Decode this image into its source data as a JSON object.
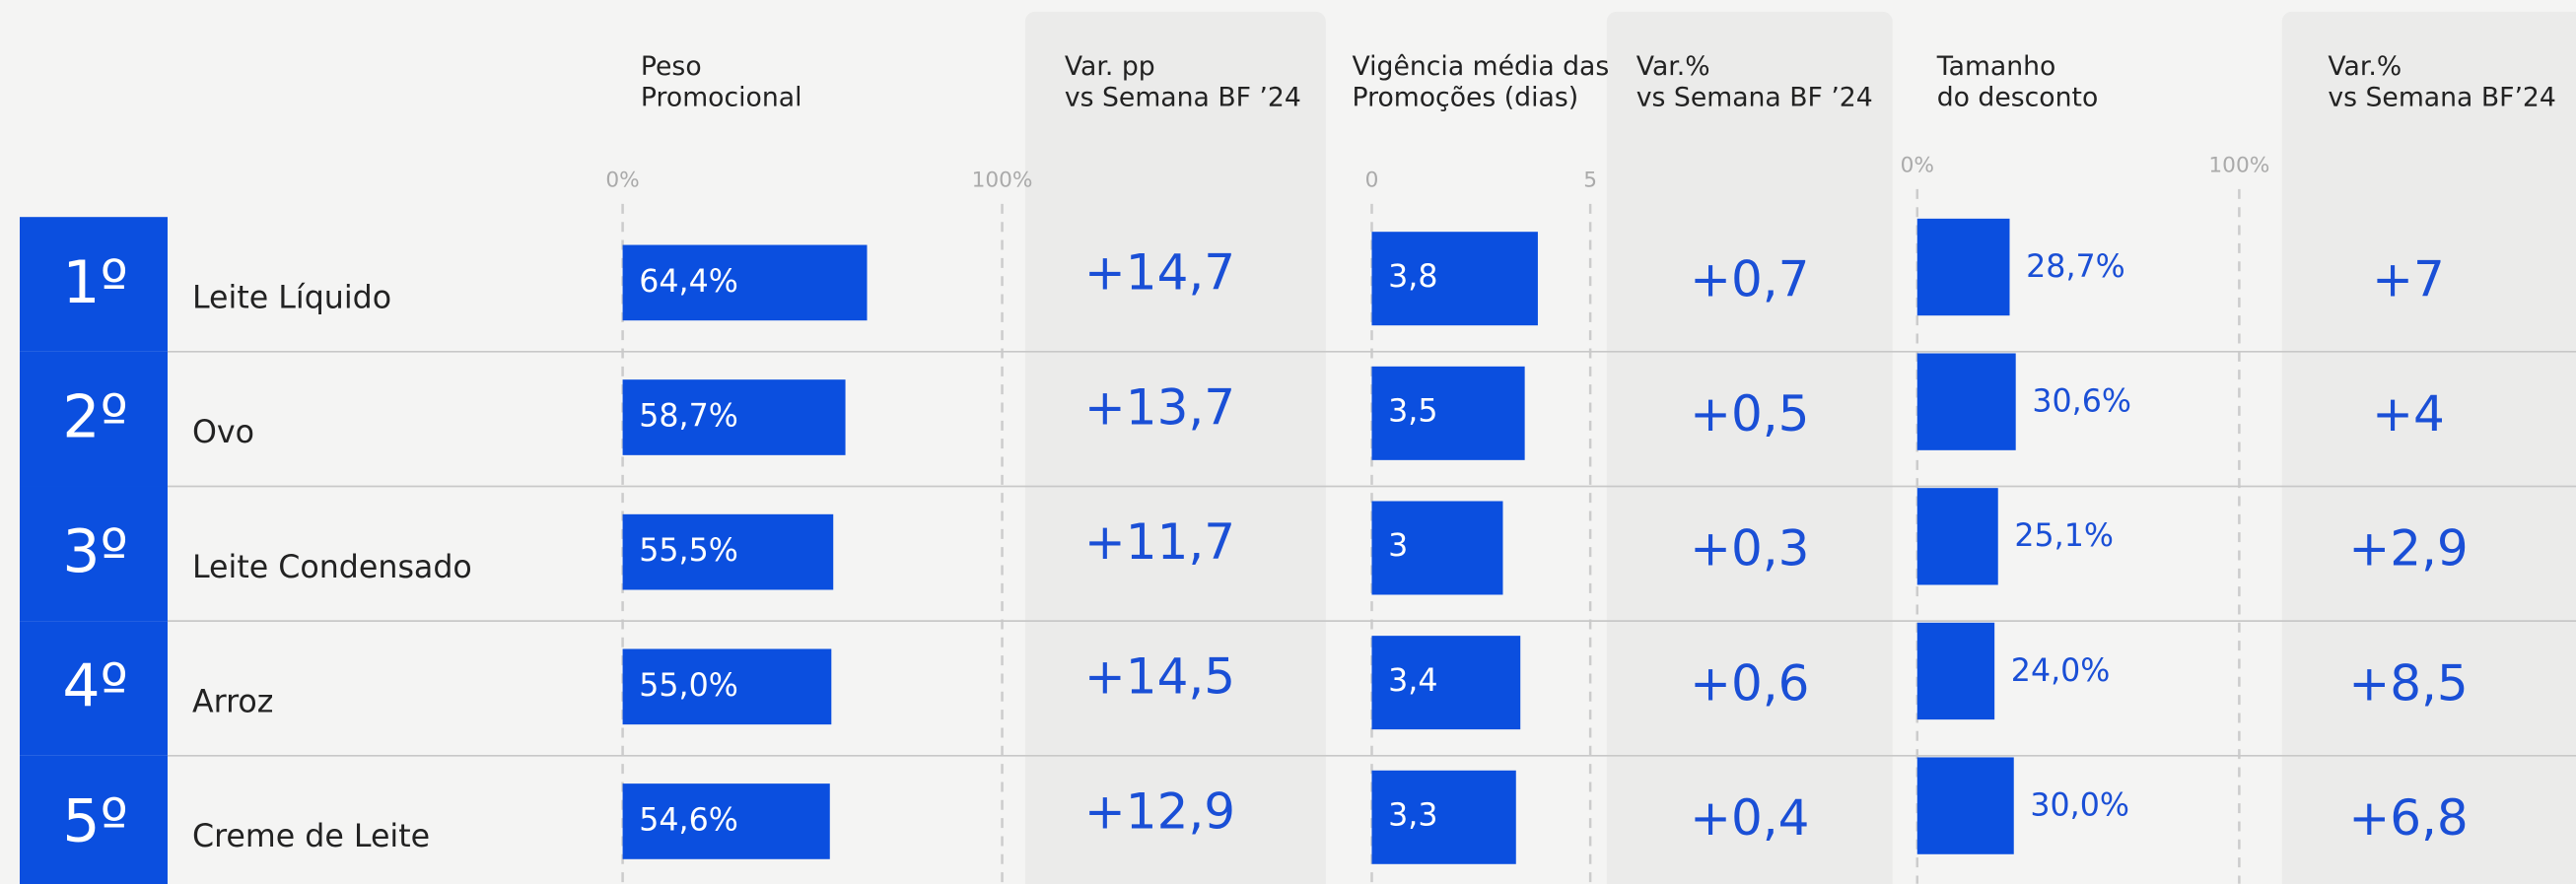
{
  "headers": [
    {
      "lines": [
        "Peso",
        "Promocional"
      ]
    },
    {
      "lines": [
        "Var. pp",
        "vs Semana BF ’24"
      ]
    },
    {
      "lines": [
        "Vigência média das",
        "Promoções (dias)"
      ]
    },
    {
      "lines": [
        "Var.%",
        "vs Semana BF ’24"
      ]
    },
    {
      "lines": [
        "Tamanho",
        "do desconto"
      ]
    },
    {
      "lines": [
        "Var.%",
        "vs Semana BF’24"
      ]
    }
  ],
  "axes": {
    "peso": {
      "lim": [
        0,
        100
      ],
      "ticks": [
        {
          "value": 0,
          "label": "0%"
        },
        {
          "value": 100,
          "label": "100%"
        }
      ]
    },
    "vigencia": {
      "lim": [
        0,
        5
      ],
      "ticks": [
        0,
        5
      ]
    },
    "desconto": {
      "lim": [
        0,
        100
      ],
      "ticks": [
        {
          "value": 0,
          "label": "0%"
        },
        {
          "value": 100,
          "label": "100%"
        }
      ]
    }
  },
  "rows": [
    {
      "rank": "1º",
      "name": "Leite Líquido",
      "peso": 64.4,
      "peso_label": "64,4%",
      "var_pp": "+14,7",
      "vigencia": 3.8,
      "vigencia_label": "3,8",
      "var_vig": "+0,7",
      "desconto": 28.7,
      "desconto_label": "28,7%",
      "var_desc": "+7"
    },
    {
      "rank": "2º",
      "name": "Ovo",
      "peso": 58.7,
      "peso_label": "58,7%",
      "var_pp": "+13,7",
      "vigencia": 3.5,
      "vigencia_label": "3,5",
      "var_vig": "+0,5",
      "desconto": 30.6,
      "desconto_label": "30,6%",
      "var_desc": "+4"
    },
    {
      "rank": "3º",
      "name": "Leite Condensado",
      "peso": 55.5,
      "peso_label": "55,5%",
      "var_pp": "+11,7",
      "vigencia": 3,
      "vigencia_label": "3",
      "var_vig": "+0,3",
      "desconto": 25.1,
      "desconto_label": "25,1%",
      "var_desc": "+2,9"
    },
    {
      "rank": "4º",
      "name": "Arroz",
      "peso": 55.0,
      "peso_label": "55,0%",
      "var_pp": "+14,5",
      "vigencia": 3.4,
      "vigencia_label": "3,4",
      "var_vig": "+0,6",
      "desconto": 24.0,
      "desconto_label": "24,0%",
      "var_desc": "+8,5"
    },
    {
      "rank": "5º",
      "name": "Creme de Leite",
      "peso": 54.6,
      "peso_label": "54,6%",
      "var_pp": "+12,9",
      "vigencia": 3.3,
      "vigencia_label": "3,3",
      "var_vig": "+0,4",
      "desconto": 30.0,
      "desconto_label": "30,0%",
      "var_desc": "+6,8"
    }
  ],
  "bar_color": "#0b4fdf"
}
